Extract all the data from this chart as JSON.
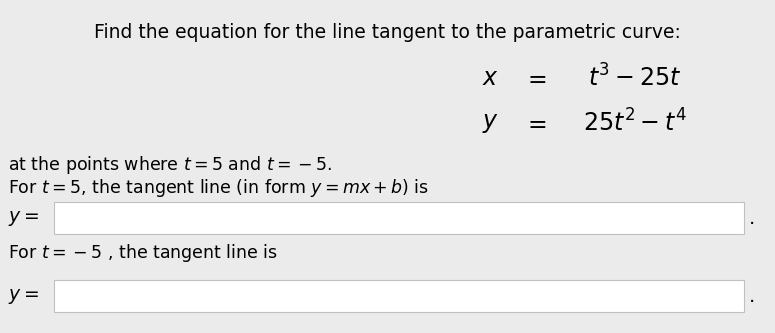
{
  "title": "Find the equation for the line tangent to the parametric curve:",
  "title_fontsize": 13.5,
  "eq_x": "$x$",
  "eq_equals": "$=$",
  "eq_x_rhs": "$t^3 - 25t$",
  "eq_y": "$y$",
  "eq_y_rhs": "$25t^2 - t^4$",
  "line1": "at the points where $t = 5$ and $t = -5$.",
  "line2": "For $t = 5$, the tangent line (in form $y = mx + b$) is",
  "label1": "$y =$",
  "line3": "For $t = -5$ , the tangent line is",
  "label2": "$y =$",
  "bg_color": "#ebebeb",
  "box_color": "#ffffff",
  "box_edge_color": "#c0c0c0",
  "text_color": "#000000",
  "font_size": 12.5,
  "eq_fontsize": 17
}
